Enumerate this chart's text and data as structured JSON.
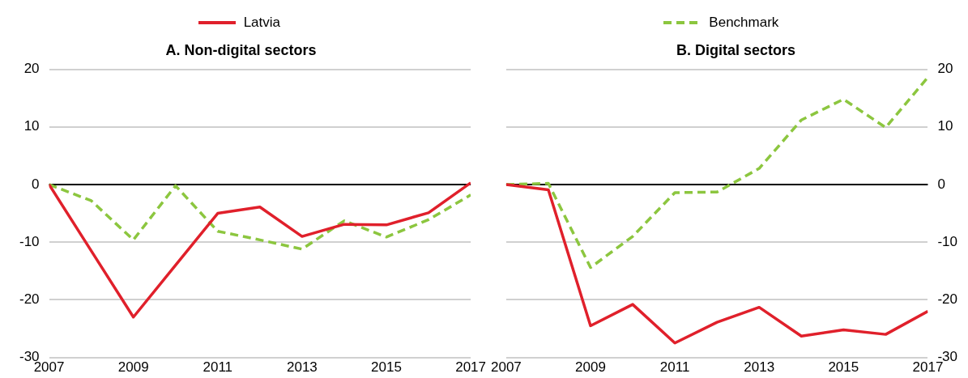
{
  "chart_data": [
    {
      "type": "line",
      "title": "A. Non-digital sectors",
      "x": [
        2007,
        2008,
        2009,
        2010,
        2011,
        2012,
        2013,
        2014,
        2015,
        2016,
        2017
      ],
      "xlim": [
        2007,
        2017
      ],
      "xticks": [
        2007,
        2009,
        2011,
        2013,
        2015,
        2017
      ],
      "ylim": [
        -30,
        20
      ],
      "yticks": [
        -30,
        -20,
        -10,
        0,
        10,
        20
      ],
      "grid": "y",
      "legend": "top",
      "ref_lines": [
        {
          "axis": "y",
          "value": 0,
          "color": "#000000"
        }
      ],
      "series": [
        {
          "name": "Latvia",
          "color": "#e0202b",
          "line_style": "solid",
          "marker": "none",
          "values": [
            0,
            -11.5,
            -23,
            -14,
            -5,
            -3.9,
            -9,
            -6.9,
            -7,
            -4.9,
            0.3
          ]
        },
        {
          "name": "Benchmark",
          "color": "#8cc63f",
          "line_style": "dashed",
          "marker": "none",
          "values": [
            0,
            -2.8,
            -9.6,
            -0.2,
            -8.1,
            -9.6,
            -11.2,
            -6.3,
            -9.1,
            -6.1,
            -1.8
          ]
        }
      ]
    },
    {
      "type": "line",
      "title": "B. Digital sectors",
      "x": [
        2007,
        2008,
        2009,
        2010,
        2011,
        2012,
        2013,
        2014,
        2015,
        2016,
        2017
      ],
      "xlim": [
        2007,
        2017
      ],
      "xticks": [
        2007,
        2009,
        2011,
        2013,
        2015,
        2017
      ],
      "ylim": [
        -30,
        20
      ],
      "yticks": [
        -30,
        -20,
        -10,
        0,
        10,
        20
      ],
      "grid": "y",
      "ref_lines": [
        {
          "axis": "y",
          "value": 0,
          "color": "#000000"
        }
      ],
      "series": [
        {
          "color": "#e0202b",
          "line_style": "solid",
          "marker": "none",
          "values": [
            0,
            -0.9,
            -24.5,
            -20.8,
            -27.5,
            -23.9,
            -21.3,
            -26.3,
            -25.2,
            -26,
            -22
          ]
        },
        {
          "color": "#8cc63f",
          "line_style": "dashed",
          "marker": "none",
          "values": [
            0,
            0.2,
            -14.4,
            -9,
            -1.4,
            -1.3,
            2.8,
            11.2,
            14.8,
            9.9,
            18.6
          ]
        }
      ]
    }
  ]
}
